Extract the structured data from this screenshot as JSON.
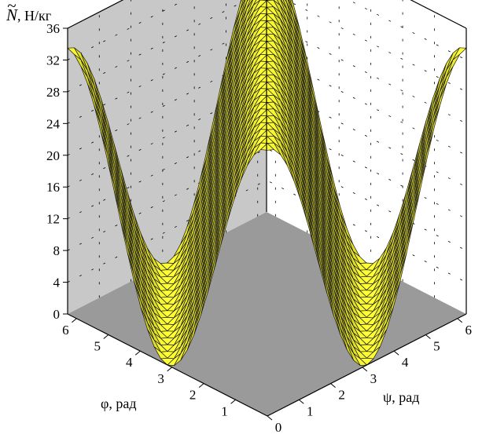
{
  "chart_data": {
    "type": "surface3d",
    "title": "",
    "z_axis": {
      "symbol": "N",
      "unit_label": ", Н/кг",
      "range": [
        0,
        36
      ],
      "ticks": [
        "0",
        "4",
        "8",
        "12",
        "16",
        "20",
        "24",
        "28",
        "32",
        "36"
      ]
    },
    "phi_axis": {
      "label": "φ, рад",
      "range": [
        0,
        6.28
      ],
      "ticks": [
        "1",
        "2",
        "3",
        "4",
        "5",
        "6"
      ]
    },
    "psi_axis": {
      "label": "ψ, рад",
      "range": [
        0,
        6.28
      ],
      "ticks": [
        "0",
        "1",
        "2",
        "3",
        "4",
        "5",
        "6"
      ]
    },
    "grid": true,
    "surface": {
      "description_formula": "z = A*cos^2((phi - psi)/2)",
      "amplitude": 33.5,
      "min": 0,
      "max": 33.5,
      "phi_steps": 30,
      "psi_steps": 30
    },
    "colors": {
      "surface_top": "#ffff33",
      "surface_shade": "#7a7400",
      "mesh": "#1a1a1a",
      "back_wall": "#c8c8c8",
      "side_wall": "#ffffff",
      "floor": "#9a9a9a"
    }
  }
}
